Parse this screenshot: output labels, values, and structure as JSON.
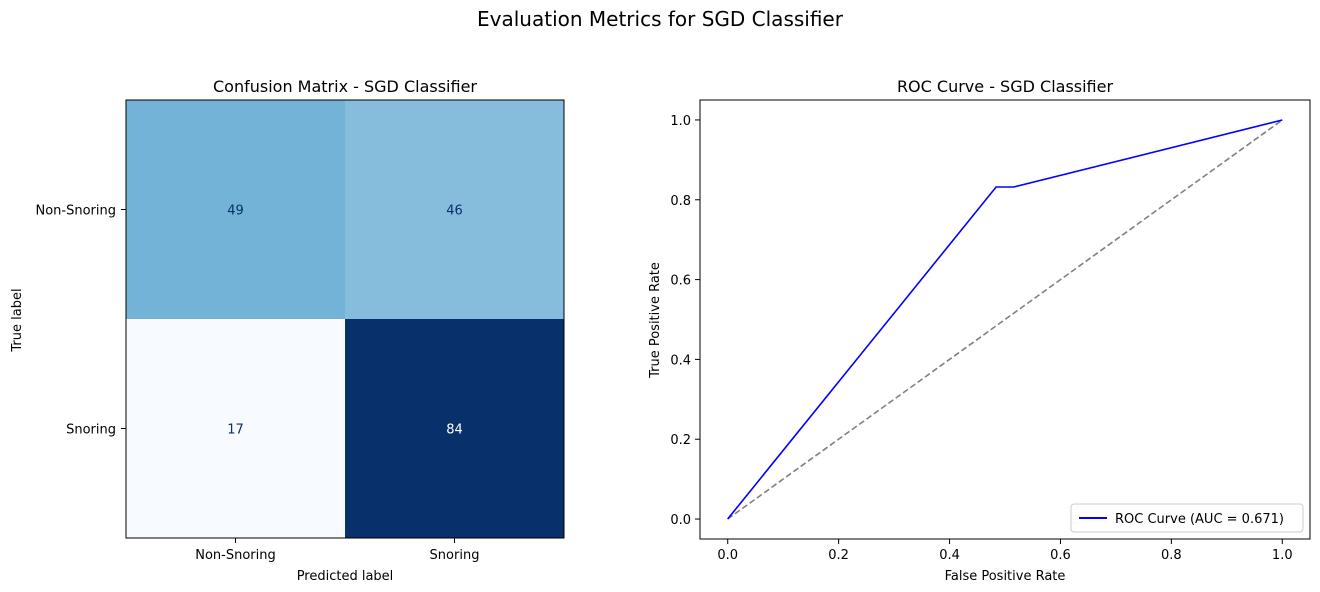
{
  "suptitle": "Evaluation Metrics for SGD Classifier",
  "chart_data": [
    {
      "type": "heatmap",
      "title": "Confusion Matrix - SGD Classifier",
      "xlabel": "Predicted label",
      "ylabel": "True label",
      "x_categories": [
        "Non-Snoring",
        "Snoring"
      ],
      "y_categories": [
        "Non-Snoring",
        "Snoring"
      ],
      "values": [
        [
          49,
          46
        ],
        [
          17,
          84
        ]
      ],
      "colormap": "Blues",
      "grid": false
    },
    {
      "type": "line",
      "title": "ROC Curve - SGD Classifier",
      "xlabel": "False Positive Rate",
      "ylabel": "True Positive Rate",
      "xlim": [
        -0.05,
        1.05
      ],
      "ylim": [
        -0.05,
        1.05
      ],
      "x_ticks": [
        "0.0",
        "0.2",
        "0.4",
        "0.6",
        "0.8",
        "1.0"
      ],
      "y_ticks": [
        "0.0",
        "0.2",
        "0.4",
        "0.6",
        "0.8",
        "1.0"
      ],
      "grid": false,
      "legend_position": "lower-right",
      "series": [
        {
          "name": "ROC Curve (AUC = 0.671)",
          "color": "#0000ff",
          "x": [
            0.0,
            0.484,
            0.516,
            1.0
          ],
          "y": [
            0.0,
            0.832,
            0.832,
            1.0
          ]
        },
        {
          "color": "#808080",
          "dashed": true,
          "x": [
            0.0,
            1.0
          ],
          "y": [
            0.0,
            1.0
          ]
        }
      ]
    }
  ]
}
